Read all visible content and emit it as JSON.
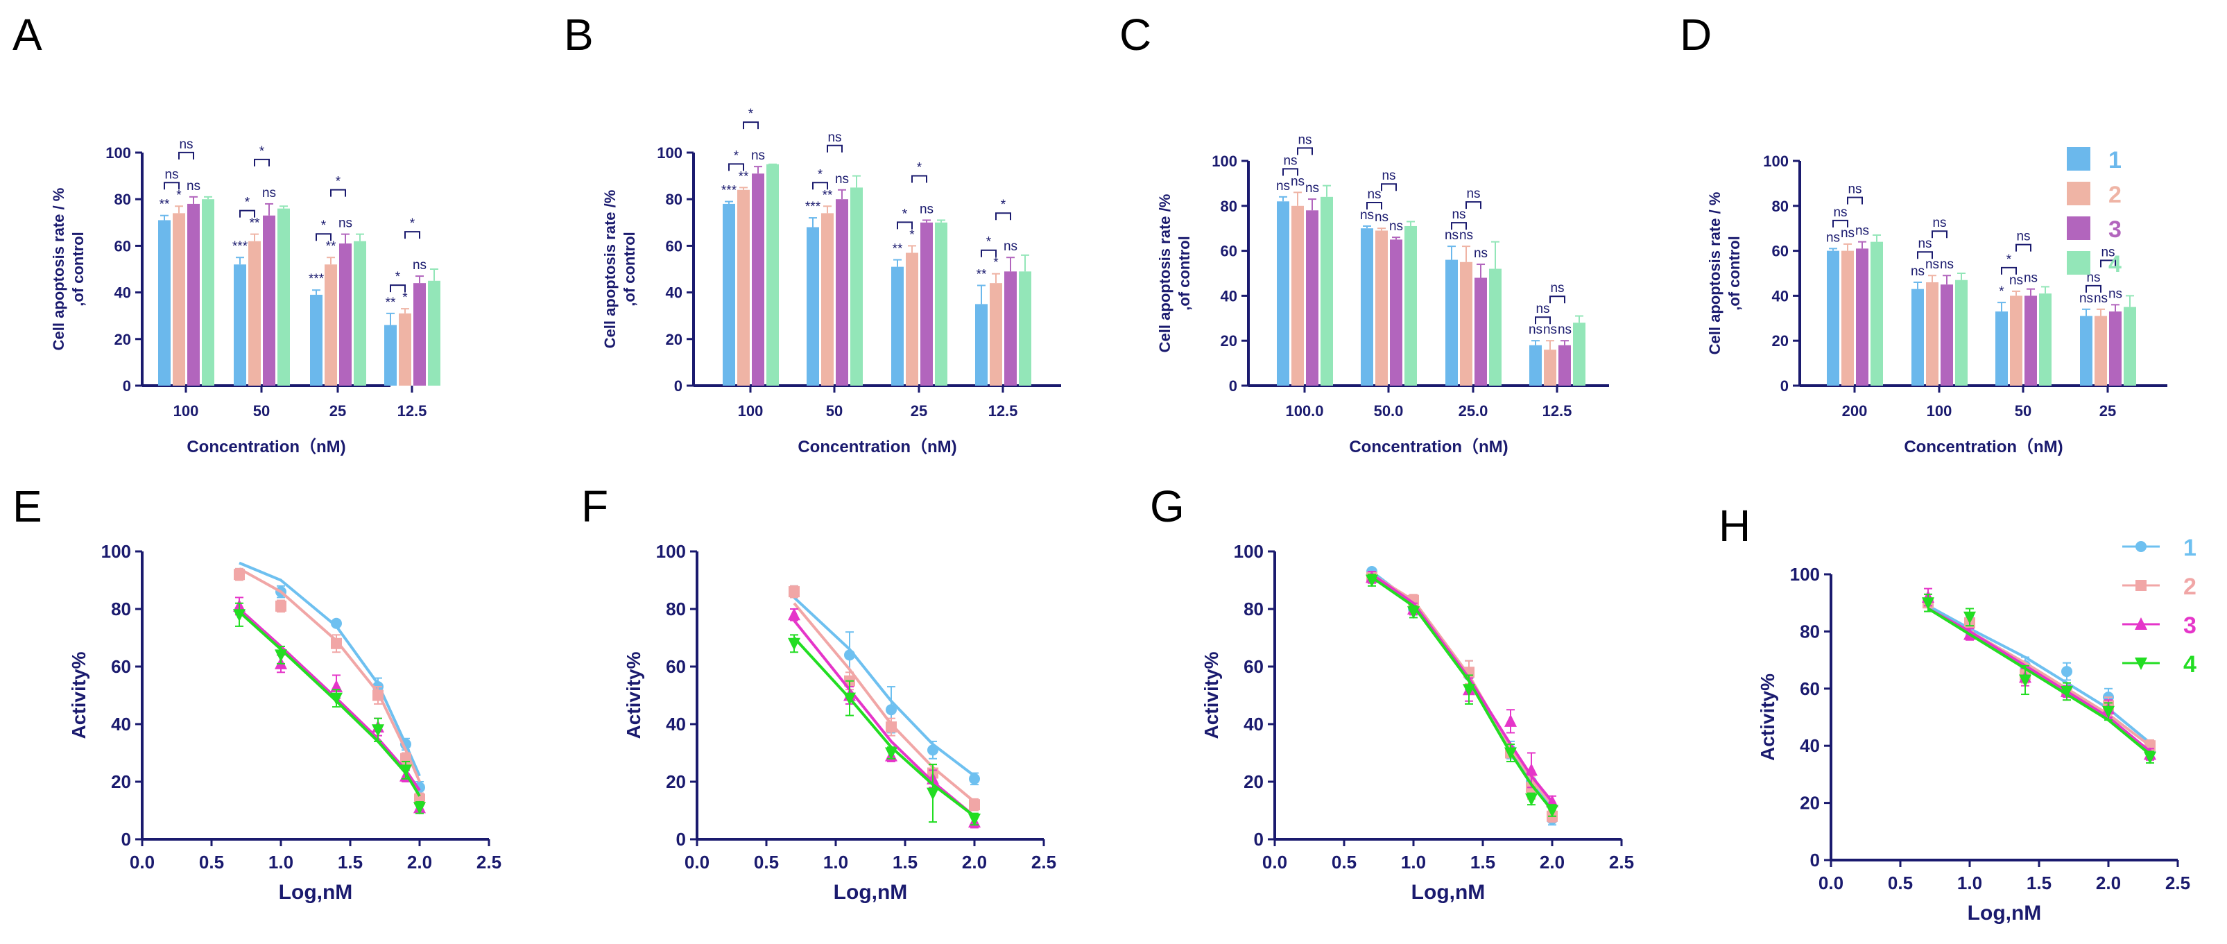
{
  "colors": {
    "1": "#6bb8ec",
    "2": "#efb4a5",
    "3": "#b265bd",
    "4": "#93e6b8",
    "axis": "#1a1a6e"
  },
  "line_colors": {
    "1": "#6ec0f0",
    "2": "#f1a6a6",
    "3": "#e535c9",
    "4": "#22dd22"
  },
  "marker_names": {
    "1": "circle",
    "2": "square",
    "3": "triangle-up",
    "4": "triangle-down"
  },
  "chart_data": [
    {
      "panel": "A",
      "type": "bar",
      "title": "",
      "ylabel": "Cell apoptosis rate / %\n,of control",
      "xlabel": "Concentration（nM)",
      "categories": [
        "100",
        "50",
        "25",
        "12.5"
      ],
      "yticks": [
        0,
        20,
        40,
        60,
        80,
        100
      ],
      "ylim": [
        0,
        100
      ],
      "series": [
        {
          "name": "1",
          "values": [
            71,
            52,
            39,
            26
          ],
          "errors": [
            2,
            3,
            2,
            5
          ]
        },
        {
          "name": "2",
          "values": [
            74,
            62,
            52,
            31
          ],
          "errors": [
            3,
            3,
            3,
            2
          ]
        },
        {
          "name": "3",
          "values": [
            78,
            73,
            61,
            44
          ],
          "errors": [
            3,
            5,
            4,
            3
          ]
        },
        {
          "name": "4",
          "values": [
            80,
            76,
            62,
            45
          ],
          "errors": [
            1,
            1,
            3,
            5
          ]
        }
      ],
      "stars": [
        [
          "**",
          "*",
          "ns",
          ""
        ],
        [
          "***",
          "**",
          "ns",
          ""
        ],
        [
          "***",
          "**",
          "ns",
          ""
        ],
        [
          "**",
          "*",
          "ns",
          ""
        ]
      ],
      "bracket_labels": [
        [
          "ns",
          "ns"
        ],
        [
          "*",
          "*"
        ],
        [
          "*",
          "*"
        ],
        [
          "*",
          "*"
        ]
      ]
    },
    {
      "panel": "B",
      "type": "bar",
      "title": "",
      "ylabel": "Cell apoptosis rate /%\n,of control",
      "xlabel": "Concentration（nM)",
      "categories": [
        "100",
        "50",
        "25",
        "12.5"
      ],
      "yticks": [
        0,
        20,
        40,
        60,
        80,
        100
      ],
      "ylim": [
        0,
        100
      ],
      "series": [
        {
          "name": "1",
          "values": [
            78,
            68,
            51,
            35
          ],
          "errors": [
            1,
            4,
            3,
            8
          ]
        },
        {
          "name": "2",
          "values": [
            84,
            74,
            57,
            44
          ],
          "errors": [
            1,
            3,
            3,
            4
          ]
        },
        {
          "name": "3",
          "values": [
            91,
            80,
            70,
            49
          ],
          "errors": [
            3,
            4,
            1,
            6
          ]
        },
        {
          "name": "4",
          "values": [
            95,
            85,
            70,
            49
          ],
          "errors": [
            0,
            5,
            1,
            7
          ]
        }
      ],
      "stars": [
        [
          "***",
          "**",
          "ns",
          ""
        ],
        [
          "***",
          "**",
          "ns",
          ""
        ],
        [
          "**",
          "*",
          "ns",
          ""
        ],
        [
          "**",
          "*",
          "ns",
          ""
        ]
      ],
      "bracket_labels": [
        [
          "*",
          "*"
        ],
        [
          "*",
          "ns"
        ],
        [
          "*",
          "*"
        ],
        [
          "*",
          "*"
        ]
      ]
    },
    {
      "panel": "C",
      "type": "bar",
      "title": "",
      "ylabel": "Cell apoptosis rate /%\n,of control",
      "xlabel": "Concentration（nM)",
      "categories": [
        "100.0",
        "50.0",
        "25.0",
        "12.5"
      ],
      "yticks": [
        0,
        20,
        40,
        60,
        80,
        100
      ],
      "ylim": [
        0,
        100
      ],
      "series": [
        {
          "name": "1",
          "values": [
            82,
            70,
            56,
            18
          ],
          "errors": [
            2,
            1,
            6,
            2
          ]
        },
        {
          "name": "2",
          "values": [
            80,
            69,
            55,
            16
          ],
          "errors": [
            6,
            1,
            7,
            4
          ]
        },
        {
          "name": "3",
          "values": [
            78,
            65,
            48,
            18
          ],
          "errors": [
            5,
            1,
            6,
            2
          ]
        },
        {
          "name": "4",
          "values": [
            84,
            71,
            52,
            28
          ],
          "errors": [
            5,
            2,
            12,
            3
          ]
        }
      ],
      "stars": [
        [
          "ns",
          "ns",
          "ns",
          ""
        ],
        [
          "ns",
          "ns",
          "ns",
          ""
        ],
        [
          "ns",
          "ns",
          "ns",
          ""
        ],
        [
          "ns",
          "ns",
          "ns",
          ""
        ]
      ],
      "bracket_labels": [
        [
          "ns",
          "ns"
        ],
        [
          "ns",
          "ns"
        ],
        [
          "ns",
          "ns"
        ],
        [
          "ns",
          "ns"
        ]
      ]
    },
    {
      "panel": "D",
      "type": "bar",
      "title": "",
      "ylabel": "Cell apoptosis rate / %\n,of control",
      "xlabel": "Concentration（nM)",
      "categories": [
        "200",
        "100",
        "50",
        "25"
      ],
      "yticks": [
        0,
        20,
        40,
        60,
        80,
        100
      ],
      "ylim": [
        0,
        100
      ],
      "series": [
        {
          "name": "1",
          "values": [
            60,
            43,
            33,
            31
          ],
          "errors": [
            1,
            3,
            4,
            3
          ]
        },
        {
          "name": "2",
          "values": [
            60,
            46,
            40,
            31
          ],
          "errors": [
            3,
            3,
            2,
            3
          ]
        },
        {
          "name": "3",
          "values": [
            61,
            45,
            40,
            33
          ],
          "errors": [
            3,
            4,
            3,
            3
          ]
        },
        {
          "name": "4",
          "values": [
            64,
            47,
            41,
            35
          ],
          "errors": [
            3,
            3,
            3,
            5
          ]
        }
      ],
      "stars": [
        [
          "ns",
          "ns",
          "ns",
          ""
        ],
        [
          "ns",
          "ns",
          "ns",
          ""
        ],
        [
          "*",
          "ns",
          "ns",
          ""
        ],
        [
          "ns",
          "ns",
          "ns",
          ""
        ]
      ],
      "bracket_labels": [
        [
          "ns",
          "ns"
        ],
        [
          "ns",
          "ns"
        ],
        [
          "*",
          "ns"
        ],
        [
          "ns",
          "ns"
        ]
      ],
      "legend": [
        "1",
        "2",
        "3",
        "4"
      ]
    },
    {
      "panel": "E",
      "type": "scatter",
      "xlabel": "Log,nM",
      "ylabel": "Activity%",
      "xticks": [
        "0.0",
        "0.5",
        "1.0",
        "1.5",
        "2.0",
        "2.5"
      ],
      "xlim": [
        0,
        2.5
      ],
      "yticks": [
        0,
        20,
        40,
        60,
        80,
        100
      ],
      "ylim": [
        0,
        100
      ],
      "x": [
        0.7,
        1.0,
        1.4,
        1.7,
        1.9,
        2.0
      ],
      "series": [
        {
          "name": "1",
          "values": [
            92,
            86,
            75,
            53,
            33,
            18
          ],
          "errors": [
            2,
            2,
            1,
            3,
            2,
            2
          ],
          "fit": [
            96,
            90,
            74,
            54,
            33,
            22
          ]
        },
        {
          "name": "2",
          "values": [
            92,
            81,
            68,
            50,
            28,
            14
          ],
          "errors": [
            2,
            2,
            3,
            3,
            2,
            2
          ],
          "fit": [
            94,
            86,
            69,
            51,
            31,
            20
          ]
        },
        {
          "name": "3",
          "values": [
            81,
            61,
            53,
            39,
            22,
            11
          ],
          "errors": [
            3,
            3,
            4,
            3,
            2,
            2
          ],
          "fit": [
            80,
            67,
            49,
            35,
            24,
            17
          ]
        },
        {
          "name": "4",
          "values": [
            78,
            64,
            49,
            38,
            24,
            11
          ],
          "errors": [
            4,
            3,
            3,
            4,
            3,
            2
          ],
          "fit": [
            79,
            66,
            48,
            34,
            23,
            15
          ]
        }
      ]
    },
    {
      "panel": "F",
      "type": "scatter",
      "xlabel": "Log,nM",
      "ylabel": "Activity%",
      "xticks": [
        "0.0",
        "0.5",
        "1.0",
        "1.5",
        "2.0",
        "2.5"
      ],
      "xlim": [
        0,
        2.5
      ],
      "yticks": [
        0,
        20,
        40,
        60,
        80,
        100
      ],
      "ylim": [
        0,
        100
      ],
      "x": [
        0.7,
        1.1,
        1.4,
        1.7,
        2.0
      ],
      "series": [
        {
          "name": "1",
          "values": [
            86,
            64,
            45,
            31,
            21
          ],
          "errors": [
            2,
            8,
            8,
            3,
            2
          ],
          "fit": [
            84,
            66,
            48,
            33,
            22
          ]
        },
        {
          "name": "2",
          "values": [
            86,
            55,
            39,
            23,
            12
          ],
          "errors": [
            2,
            3,
            3,
            3,
            2
          ],
          "fit": [
            82,
            59,
            40,
            25,
            13
          ]
        },
        {
          "name": "3",
          "values": [
            78,
            50,
            29,
            21,
            6
          ],
          "errors": [
            2,
            3,
            2,
            3,
            2
          ],
          "fit": [
            76,
            52,
            34,
            20,
            8
          ]
        },
        {
          "name": "4",
          "values": [
            68,
            49,
            30,
            16,
            7
          ],
          "errors": [
            3,
            6,
            2,
            10,
            2
          ],
          "fit": [
            70,
            49,
            32,
            19,
            8
          ]
        }
      ]
    },
    {
      "panel": "G",
      "type": "scatter",
      "xlabel": "Log,nM",
      "ylabel": "Activity%",
      "xticks": [
        "0.0",
        "0.5",
        "1.0",
        "1.5",
        "2.0",
        "2.5"
      ],
      "xlim": [
        0,
        2.5
      ],
      "yticks": [
        0,
        20,
        40,
        60,
        80,
        100
      ],
      "ylim": [
        0,
        100
      ],
      "x": [
        0.7,
        1.0,
        1.4,
        1.7,
        1.85,
        2.0
      ],
      "series": [
        {
          "name": "1",
          "values": [
            93,
            80,
            57,
            31,
            20,
            7
          ],
          "errors": [
            1,
            2,
            5,
            3,
            3,
            2
          ],
          "fit": [
            93,
            82,
            56,
            31,
            20,
            11
          ]
        },
        {
          "name": "2",
          "values": [
            91,
            83,
            58,
            30,
            18,
            8
          ],
          "errors": [
            2,
            2,
            4,
            3,
            4,
            2
          ],
          "fit": [
            92,
            83,
            57,
            32,
            21,
            12
          ]
        },
        {
          "name": "3",
          "values": [
            91,
            80,
            52,
            41,
            24,
            13
          ],
          "errors": [
            2,
            2,
            4,
            4,
            6,
            2
          ],
          "fit": [
            92,
            82,
            56,
            33,
            22,
            13
          ]
        },
        {
          "name": "4",
          "values": [
            90,
            79,
            52,
            30,
            14,
            10
          ],
          "errors": [
            2,
            2,
            5,
            3,
            2,
            2
          ],
          "fit": [
            91,
            81,
            55,
            30,
            19,
            10
          ]
        }
      ]
    },
    {
      "panel": "H",
      "type": "scatter",
      "xlabel": "Log,nM",
      "ylabel": "Activity%",
      "xticks": [
        "0.0",
        "0.5",
        "1.0",
        "1.5",
        "2.0",
        "2.5"
      ],
      "xlim": [
        0,
        2.5
      ],
      "yticks": [
        0,
        20,
        40,
        60,
        80,
        100
      ],
      "ylim": [
        0,
        100
      ],
      "x": [
        0.7,
        1.0,
        1.4,
        1.7,
        2.0,
        2.3
      ],
      "series": [
        {
          "name": "1",
          "values": [
            90,
            82,
            68,
            66,
            57,
            38
          ],
          "errors": [
            3,
            3,
            3,
            3,
            3,
            2
          ],
          "fit": [
            89,
            81,
            71,
            62,
            53,
            41
          ]
        },
        {
          "name": "2",
          "values": [
            90,
            83,
            65,
            59,
            54,
            40
          ],
          "errors": [
            3,
            3,
            3,
            3,
            3,
            2
          ],
          "fit": [
            88,
            80,
            69,
            60,
            51,
            40
          ]
        },
        {
          "name": "3",
          "values": [
            92,
            79,
            64,
            59,
            53,
            37
          ],
          "errors": [
            3,
            2,
            3,
            2,
            3,
            2
          ],
          "fit": [
            88,
            80,
            68,
            59,
            50,
            38
          ]
        },
        {
          "name": "4",
          "values": [
            90,
            85,
            63,
            59,
            52,
            36
          ],
          "errors": [
            3,
            3,
            5,
            3,
            3,
            2
          ],
          "fit": [
            88,
            79,
            67,
            58,
            49,
            37
          ]
        }
      ],
      "legend": [
        "1",
        "2",
        "3",
        "4"
      ]
    }
  ]
}
